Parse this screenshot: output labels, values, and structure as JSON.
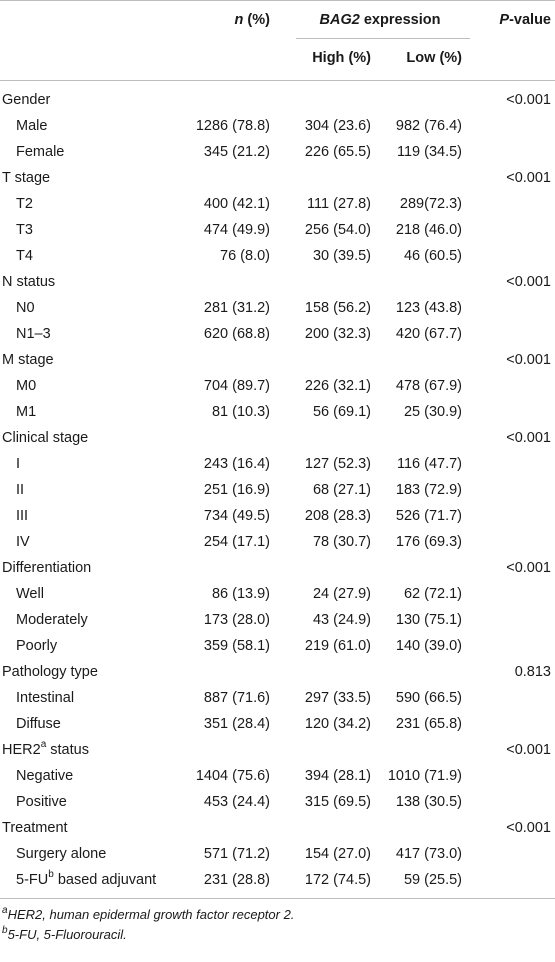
{
  "header": {
    "n_label": "n",
    "n_suffix": " (%)",
    "expression_gene": "BAG2",
    "expression_suffix": " expression",
    "high_label": "High (%)",
    "low_label": "Low (%)",
    "p_label": "P",
    "p_suffix": "-value"
  },
  "groups": [
    {
      "label": "Gender",
      "sup": "",
      "p": "<0.001",
      "rows": [
        {
          "label": "Male",
          "sup": "",
          "n": "1286 (78.8)",
          "high": "304 (23.6)",
          "low": "982 (76.4)"
        },
        {
          "label": "Female",
          "sup": "",
          "n": "345 (21.2)",
          "high": "226 (65.5)",
          "low": "119 (34.5)"
        }
      ]
    },
    {
      "label": "T stage",
      "sup": "",
      "p": "<0.001",
      "rows": [
        {
          "label": "T2",
          "sup": "",
          "n": "400 (42.1)",
          "high": "111 (27.8)",
          "low": "289(72.3)"
        },
        {
          "label": "T3",
          "sup": "",
          "n": "474 (49.9)",
          "high": "256 (54.0)",
          "low": "218 (46.0)"
        },
        {
          "label": "T4",
          "sup": "",
          "n": "76 (8.0)",
          "high": "30 (39.5)",
          "low": "46 (60.5)"
        }
      ]
    },
    {
      "label": "N status",
      "sup": "",
      "p": "<0.001",
      "rows": [
        {
          "label": "N0",
          "sup": "",
          "n": "281 (31.2)",
          "high": "158 (56.2)",
          "low": "123 (43.8)"
        },
        {
          "label": "N1–3",
          "sup": "",
          "n": "620 (68.8)",
          "high": "200 (32.3)",
          "low": "420 (67.7)"
        }
      ]
    },
    {
      "label": "M stage",
      "sup": "",
      "p": "<0.001",
      "rows": [
        {
          "label": "M0",
          "sup": "",
          "n": "704 (89.7)",
          "high": "226 (32.1)",
          "low": "478 (67.9)"
        },
        {
          "label": "M1",
          "sup": "",
          "n": "81 (10.3)",
          "high": "56 (69.1)",
          "low": "25 (30.9)"
        }
      ]
    },
    {
      "label": "Clinical stage",
      "sup": "",
      "p": "<0.001",
      "rows": [
        {
          "label": "I",
          "sup": "",
          "n": "243 (16.4)",
          "high": "127 (52.3)",
          "low": "116 (47.7)"
        },
        {
          "label": "II",
          "sup": "",
          "n": "251 (16.9)",
          "high": "68 (27.1)",
          "low": "183 (72.9)"
        },
        {
          "label": "III",
          "sup": "",
          "n": "734 (49.5)",
          "high": "208 (28.3)",
          "low": "526 (71.7)"
        },
        {
          "label": "IV",
          "sup": "",
          "n": "254 (17.1)",
          "high": "78 (30.7)",
          "low": "176 (69.3)"
        }
      ]
    },
    {
      "label": "Differentiation",
      "sup": "",
      "p": "<0.001",
      "rows": [
        {
          "label": "Well",
          "sup": "",
          "n": "86 (13.9)",
          "high": "24 (27.9)",
          "low": "62 (72.1)"
        },
        {
          "label": "Moderately",
          "sup": "",
          "n": "173 (28.0)",
          "high": "43 (24.9)",
          "low": "130 (75.1)"
        },
        {
          "label": "Poorly",
          "sup": "",
          "n": "359 (58.1)",
          "high": "219 (61.0)",
          "low": "140 (39.0)"
        }
      ]
    },
    {
      "label": "Pathology type",
      "sup": "",
      "p": "0.813",
      "rows": [
        {
          "label": "Intestinal",
          "sup": "",
          "n": "887 (71.6)",
          "high": "297 (33.5)",
          "low": "590 (66.5)"
        },
        {
          "label": "Diffuse",
          "sup": "",
          "n": "351 (28.4)",
          "high": "120 (34.2)",
          "low": "231 (65.8)"
        }
      ]
    },
    {
      "label": "HER2",
      "sup": "a",
      "label_suffix": " status",
      "p": "<0.001",
      "rows": [
        {
          "label": "Negative",
          "sup": "",
          "n": "1404 (75.6)",
          "high": "394 (28.1)",
          "low": "1010 (71.9)"
        },
        {
          "label": "Positive",
          "sup": "",
          "n": "453 (24.4)",
          "high": "315 (69.5)",
          "low": "138 (30.5)"
        }
      ]
    },
    {
      "label": "Treatment",
      "sup": "",
      "p": "<0.001",
      "rows": [
        {
          "label": "Surgery alone",
          "sup": "",
          "n": "571 (71.2)",
          "high": "154 (27.0)",
          "low": "417 (73.0)"
        },
        {
          "label": "5-FU",
          "sup": "b",
          "label_suffix": " based adjuvant",
          "n": "231 (28.8)",
          "high": "172 (74.5)",
          "low": "59 (25.5)"
        }
      ]
    }
  ],
  "footnotes": [
    {
      "mark": "a",
      "text": "HER2, human epidermal growth factor receptor 2."
    },
    {
      "mark": "b",
      "text": "5-FU, 5-Fluorouracil."
    }
  ]
}
